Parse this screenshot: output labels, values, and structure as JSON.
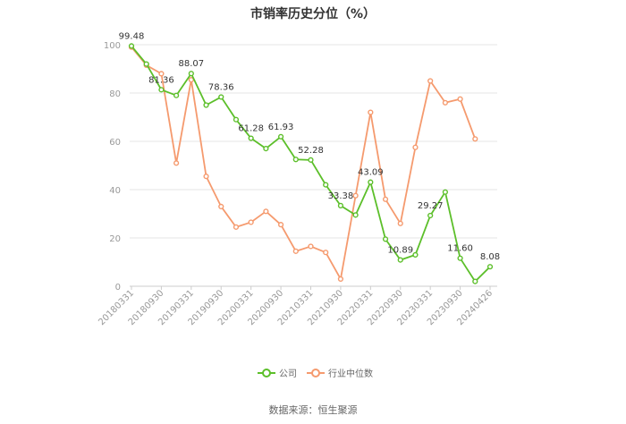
{
  "chart_data": {
    "type": "line",
    "title": "市销率历史分位（%）",
    "ylim": [
      0,
      100
    ],
    "yticks": [
      0,
      20,
      40,
      60,
      80,
      100
    ],
    "grid": true,
    "legend_position": "bottom",
    "x_tick_labels": [
      "20180331",
      "20180930",
      "20190331",
      "20190930",
      "20200331",
      "20200930",
      "20210331",
      "20210930",
      "20220331",
      "20220930",
      "20230331",
      "20230930",
      "20240426"
    ],
    "x": [
      "20180331",
      "20180630",
      "20180930",
      "20181231",
      "20190331",
      "20190630",
      "20190930",
      "20191231",
      "20200331",
      "20200630",
      "20200930",
      "20201231",
      "20210331",
      "20210630",
      "20210930",
      "20211231",
      "20220331",
      "20220630",
      "20220930",
      "20221231",
      "20230331",
      "20230630",
      "20230930",
      "20231231",
      "20240426"
    ],
    "series": [
      {
        "name": "公司",
        "color": "#5cbf2a",
        "values": [
          99.48,
          92.0,
          81.36,
          79.0,
          88.07,
          75.0,
          78.36,
          69.0,
          61.28,
          57.0,
          61.93,
          52.5,
          52.28,
          42.0,
          33.38,
          29.5,
          43.09,
          19.5,
          10.89,
          13.0,
          29.27,
          39.0,
          11.6,
          2.0,
          8.08
        ],
        "labeled_values": [
          "99.48",
          "",
          "81.36",
          "",
          "88.07",
          "",
          "78.36",
          "",
          "61.28",
          "",
          "61.93",
          "",
          "52.28",
          "",
          "33.38",
          "",
          "43.09",
          "",
          "10.89",
          "",
          "29.27",
          "",
          "11.60",
          "",
          "8.08"
        ]
      },
      {
        "name": "行业中位数",
        "color": "#f59a6e",
        "values": [
          99.0,
          91.5,
          88.0,
          51.0,
          85.5,
          45.5,
          33.0,
          24.5,
          26.5,
          31.0,
          25.5,
          14.5,
          16.5,
          14.0,
          3.0,
          37.5,
          72.0,
          36.0,
          26.0,
          57.5,
          85.0,
          76.0,
          77.5,
          61.0,
          null
        ]
      }
    ]
  },
  "legend": {
    "company": "公司",
    "industry": "行业中位数"
  },
  "footer": {
    "source": "数据来源：恒生聚源"
  }
}
